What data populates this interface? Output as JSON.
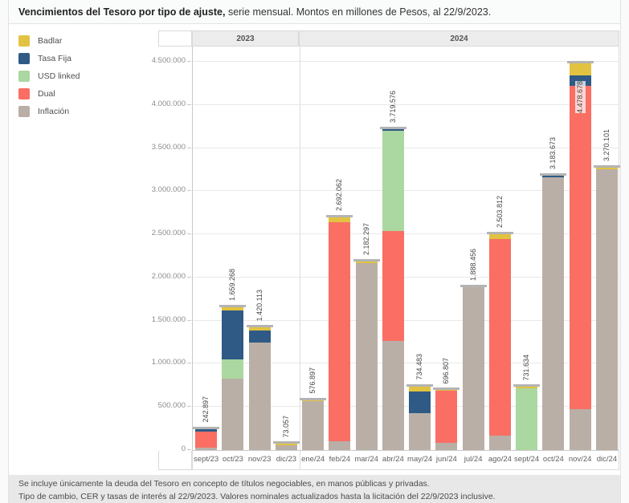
{
  "title": {
    "bold": "Vencimientos del Tesoro por tipo de ajuste,",
    "rest": " serie mensual. Montos en millones de Pesos, al 22/9/2023."
  },
  "legend": {
    "items": [
      {
        "label": "Badlar",
        "color": "#e2c341"
      },
      {
        "label": "Tasa Fija",
        "color": "#2e5a85"
      },
      {
        "label": "USD linked",
        "color": "#abd7a0"
      },
      {
        "label": "Dual",
        "color": "#fa6e63"
      },
      {
        "label": "Inflación",
        "color": "#b9afa7"
      }
    ]
  },
  "footer": {
    "line1": "Se incluye únicamente la deuda del Tesoro en concepto de títulos negociables, en manos públicas y privadas.",
    "line2": "Tipo de cambio, CER y tasas de interés al 22/9/2023. Valores nominales actualizados hasta la licitación del 22/9/2023 inclusive."
  },
  "chart_data": {
    "type": "bar",
    "stacked": true,
    "title": "Vencimientos del Tesoro por tipo de ajuste, serie mensual. Montos en millones de Pesos, al 22/9/2023.",
    "unit": "millones de Pesos",
    "x_groups": [
      {
        "label": "2023",
        "count": 4
      },
      {
        "label": "2024",
        "count": 12
      }
    ],
    "categories": [
      "sept/23",
      "oct/23",
      "nov/23",
      "dic/23",
      "ene/24",
      "feb/24",
      "mar/24",
      "abr/24",
      "may/24",
      "jun/24",
      "jul/24",
      "ago/24",
      "sept/24",
      "oct/24",
      "nov/24",
      "dic/24"
    ],
    "series": [
      {
        "name": "Inflación",
        "color": "#b9afa7",
        "values": [
          25000,
          830000,
          1250000,
          60000,
          565000,
          100000,
          2167297,
          1265000,
          430000,
          80000,
          1888456,
          170000,
          0,
          3163673,
          475000,
          3255101
        ]
      },
      {
        "name": "Dual",
        "color": "#fa6e63",
        "values": [
          190000,
          0,
          0,
          0,
          0,
          2537062,
          0,
          1270000,
          0,
          605000,
          0,
          2280000,
          0,
          0,
          3750000,
          0
        ]
      },
      {
        "name": "USD linked",
        "color": "#abd7a0",
        "values": [
          0,
          220000,
          0,
          0,
          0,
          0,
          0,
          1164576,
          0,
          0,
          0,
          0,
          720000,
          0,
          0,
          0
        ]
      },
      {
        "name": "Tasa Fija",
        "color": "#2e5a85",
        "values": [
          27897,
          570000,
          135113,
          0,
          0,
          0,
          0,
          20000,
          250000,
          0,
          0,
          0,
          0,
          20000,
          120000,
          0
        ]
      },
      {
        "name": "Badlar",
        "color": "#e2c341",
        "values": [
          0,
          39268,
          35000,
          13057,
          11897,
          55000,
          15000,
          0,
          54483,
          11807,
          0,
          53812,
          11634,
          0,
          133678,
          15000
        ]
      }
    ],
    "totals": [
      242897,
      1659268,
      1420113,
      73057,
      576897,
      2692062,
      2182297,
      3719576,
      734483,
      696807,
      1888456,
      2503812,
      731634,
      3183673,
      4478678,
      3270101
    ],
    "total_labels": [
      "242.897",
      "1.659.268",
      "1.420.113",
      "73.057",
      "576.897",
      "2.692.062",
      "2.182.297",
      "3.719.576",
      "734.483",
      "696.807",
      "1.888.456",
      "2.503.812",
      "731.634",
      "3.183.673",
      "4.478.678",
      "3.270.101"
    ],
    "label_inside_index": 14,
    "y_axis": {
      "min": 0,
      "max": 4500000,
      "step": 500000,
      "tick_labels": [
        "0",
        "500.000",
        "1.000.000",
        "1.500.000",
        "2.000.000",
        "2.500.000",
        "3.000.000",
        "3.500.000",
        "4.000.000",
        "4.500.000"
      ]
    },
    "grid": true,
    "legend_position": "top-left",
    "cap_color": "#b4b4b4"
  }
}
